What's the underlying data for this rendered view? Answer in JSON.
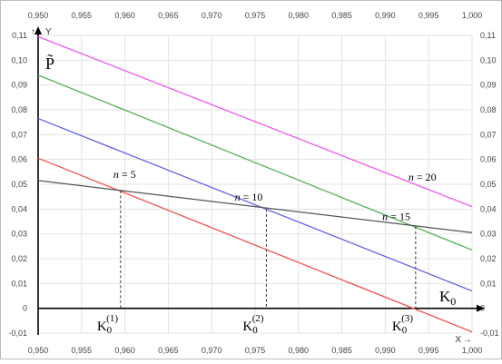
{
  "chart_data": {
    "type": "line",
    "x_axis_label": "X",
    "y_axis_label": "Y",
    "xlim": [
      0.95,
      1.0
    ],
    "ylim": [
      -0.01,
      0.11
    ],
    "x_ticks": [
      "0,950",
      "0,955",
      "0,960",
      "0,965",
      "0,970",
      "0,975",
      "0,980",
      "0,985",
      "0,990",
      "0,995",
      "1,000"
    ],
    "y_ticks": [
      "0,11",
      "0,10",
      "0,09",
      "0,08",
      "0,07",
      "0,06",
      "0,05",
      "0,04",
      "0,03",
      "0,02",
      "0,01",
      "0",
      "-0,01"
    ],
    "x_tick_values": [
      0.95,
      0.955,
      0.96,
      0.965,
      0.97,
      0.975,
      0.98,
      0.985,
      0.99,
      0.995,
      1.0
    ],
    "y_tick_values": [
      0.11,
      0.1,
      0.09,
      0.08,
      0.07,
      0.06,
      0.05,
      0.04,
      0.03,
      0.02,
      0.01,
      0,
      -0.01
    ],
    "grid": true,
    "series": [
      {
        "name": "n = 20",
        "color": "#ee55ee",
        "x": [
          0.95,
          1.0
        ],
        "y": [
          0.1095,
          0.041
        ]
      },
      {
        "name": "n = 15",
        "color": "#55b055",
        "x": [
          0.95,
          1.0
        ],
        "y": [
          0.094,
          0.0235
        ]
      },
      {
        "name": "n = 10",
        "color": "#6060e8",
        "x": [
          0.95,
          1.0
        ],
        "y": [
          0.0765,
          0.007
        ]
      },
      {
        "name": "n = 5",
        "color": "#f05050",
        "x": [
          0.95,
          1.0
        ],
        "y": [
          0.0605,
          -0.0095
        ]
      },
      {
        "color": "#555555",
        "x": [
          0.95,
          1.0
        ],
        "y": [
          0.0515,
          0.0305
        ]
      }
    ],
    "curve_labels": [
      {
        "text_n": "n",
        "text_eq": " = 5",
        "x": 0.9595,
        "y": 0.0525
      },
      {
        "text_n": "n",
        "text_eq": " = 10",
        "x": 0.9735,
        "y": 0.0435
      },
      {
        "text_n": "n",
        "text_eq": " = 15",
        "x": 0.9905,
        "y": 0.0355
      },
      {
        "text_n": "n",
        "text_eq": " = 20",
        "x": 0.9935,
        "y": 0.0515
      }
    ],
    "intersections": [
      {
        "x": 0.9595,
        "y": 0.0475,
        "label_base": "K",
        "label_sub": "0",
        "label_sup": "(1)"
      },
      {
        "x": 0.9763,
        "y": 0.04,
        "label_base": "K",
        "label_sub": "0",
        "label_sup": "(2)"
      },
      {
        "x": 0.9935,
        "y": 0.033,
        "label_base": "K",
        "label_sub": "0",
        "label_sup": "(3)"
      }
    ],
    "y_title": "P̃",
    "x_title_base": "K",
    "x_title_sub": "0",
    "x_arrow": "→",
    "y_arrow": "↑"
  }
}
